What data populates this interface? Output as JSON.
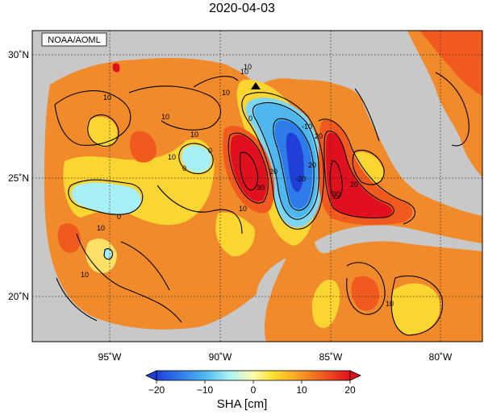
{
  "title": "2020-04-03",
  "credit": "NOAA/AOML",
  "colorbar": {
    "label": "SHA [cm]",
    "ticks": [
      "−20",
      "−10",
      "0",
      "10",
      "20"
    ],
    "min": -20,
    "max": 20
  },
  "axes": {
    "x_ticks": [
      "95˚W",
      "90˚W",
      "85˚W",
      "80˚W"
    ],
    "y_ticks": [
      "30˚N",
      "25˚N",
      "20˚N"
    ]
  },
  "contour_labels": [
    "10",
    "10",
    "10",
    "0",
    "10",
    "10",
    "0",
    "-10",
    "20",
    "-20",
    "30",
    "10",
    "20",
    "20",
    "30",
    "20",
    "10",
    "10",
    "0",
    "0",
    "10",
    "10",
    "10"
  ],
  "colors": {
    "land": "#c8c8c8",
    "ocean_base": "#f08a2a"
  },
  "marker": "triangle"
}
